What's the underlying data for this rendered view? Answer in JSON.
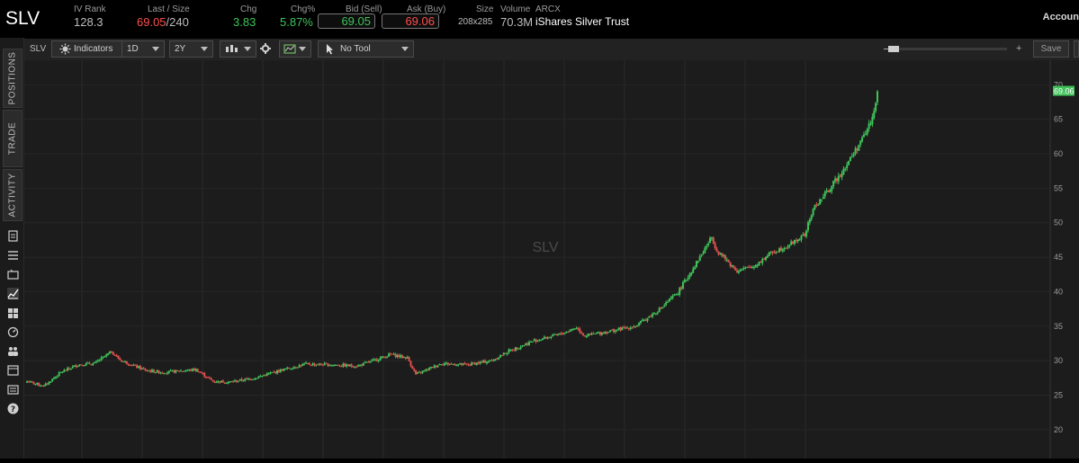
{
  "symbol": "SLV",
  "quote": {
    "iv_rank_label": "IV Rank",
    "iv_rank": "128.3",
    "last_size_label": "Last / Size",
    "last": "69.05",
    "size": "/240",
    "chg_label": "Chg",
    "chg": "3.83",
    "chgpct_label": "Chg%",
    "chgpct": "5.87%",
    "bid_label": "Bid (Sell)",
    "bid": "69.05",
    "ask_label": "Ask (Buy)",
    "ask": "69.06",
    "bidask_size_label": "Size",
    "bidask_size": "208x285",
    "volume_label": "Volume",
    "exchange": "ARCX",
    "volume": "70.3M",
    "description": "iShares Silver Trust"
  },
  "account_label": "Accoun",
  "sidebar": {
    "tabs": [
      "POSITIONS",
      "TRADE",
      "ACTIVITY"
    ],
    "icons": [
      "clipboard-icon",
      "list-icon",
      "monitor-icon",
      "chart-icon",
      "grid-icon",
      "gauge-icon",
      "people-icon",
      "calendar-icon",
      "news-icon",
      "help-icon"
    ]
  },
  "toolbar": {
    "symbol": "SLV",
    "indicators_label": "Indicators",
    "interval": "1D",
    "range": "2Y",
    "tool_label": "No Tool",
    "save_label": "Save"
  },
  "chart_data": {
    "type": "candlestick",
    "watermark": "SLV",
    "last_price_tag": "69.06",
    "y_ticks": [
      20,
      25,
      30,
      35,
      40,
      45,
      50,
      55,
      60,
      65,
      70
    ],
    "ylim": [
      17.5,
      72
    ],
    "x_period": "2Y daily",
    "close_path": [
      [
        0,
        27.0
      ],
      [
        10,
        26.3
      ],
      [
        20,
        28.3
      ],
      [
        30,
        29.4
      ],
      [
        40,
        29.6
      ],
      [
        50,
        31.3
      ],
      [
        55,
        30.1
      ],
      [
        70,
        28.6
      ],
      [
        80,
        28.3
      ],
      [
        100,
        28.7
      ],
      [
        110,
        27.0
      ],
      [
        120,
        26.9
      ],
      [
        135,
        27.5
      ],
      [
        150,
        28.6
      ],
      [
        165,
        29.5
      ],
      [
        180,
        29.4
      ],
      [
        195,
        29.2
      ],
      [
        205,
        30.0
      ],
      [
        215,
        30.9
      ],
      [
        225,
        30.4
      ],
      [
        230,
        28.0
      ],
      [
        245,
        29.6
      ],
      [
        260,
        29.4
      ],
      [
        275,
        30.0
      ],
      [
        285,
        31.4
      ],
      [
        300,
        32.9
      ],
      [
        315,
        33.8
      ],
      [
        325,
        34.8
      ],
      [
        330,
        33.6
      ],
      [
        345,
        34.3
      ],
      [
        360,
        35.0
      ],
      [
        375,
        37.6
      ],
      [
        385,
        39.9
      ],
      [
        395,
        43.8
      ],
      [
        405,
        47.9
      ],
      [
        408,
        46.0
      ],
      [
        420,
        43.0
      ],
      [
        430,
        43.7
      ],
      [
        440,
        45.6
      ],
      [
        450,
        46.7
      ],
      [
        460,
        48.2
      ],
      [
        465,
        52.0
      ],
      [
        475,
        55.0
      ],
      [
        485,
        58.5
      ],
      [
        495,
        62.5
      ],
      [
        500,
        65.2
      ],
      [
        503,
        69.05
      ]
    ]
  }
}
